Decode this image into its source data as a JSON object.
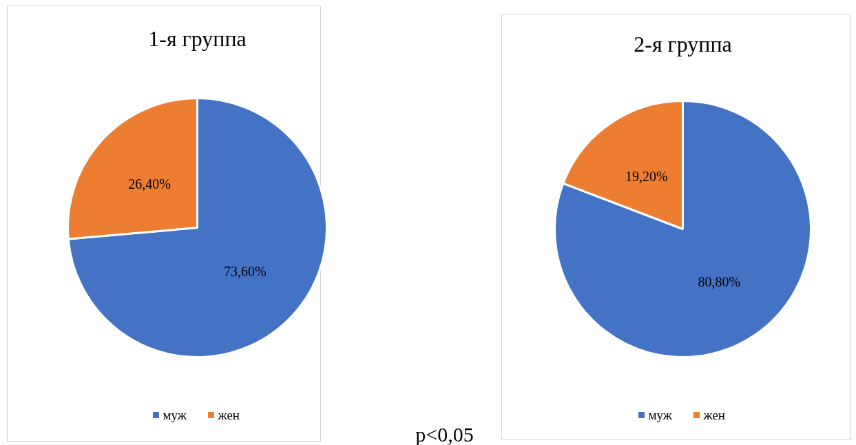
{
  "chart_data": [
    {
      "type": "pie",
      "title": "1-я группа",
      "categories": [
        "муж",
        "жен"
      ],
      "values": [
        73.6,
        26.4
      ],
      "colors": [
        "#4472c4",
        "#ed7d31"
      ],
      "value_labels": [
        "73,60%",
        "26,40%"
      ],
      "legend": "bottom"
    },
    {
      "type": "pie",
      "title": "2-я группа",
      "categories": [
        "муж",
        "жен"
      ],
      "values": [
        80.8,
        19.2
      ],
      "colors": [
        "#4472c4",
        "#ed7d31"
      ],
      "value_labels": [
        "80,80%",
        "19,20%"
      ],
      "legend": "bottom",
      "annotations": [
        "p<0,05"
      ]
    }
  ]
}
